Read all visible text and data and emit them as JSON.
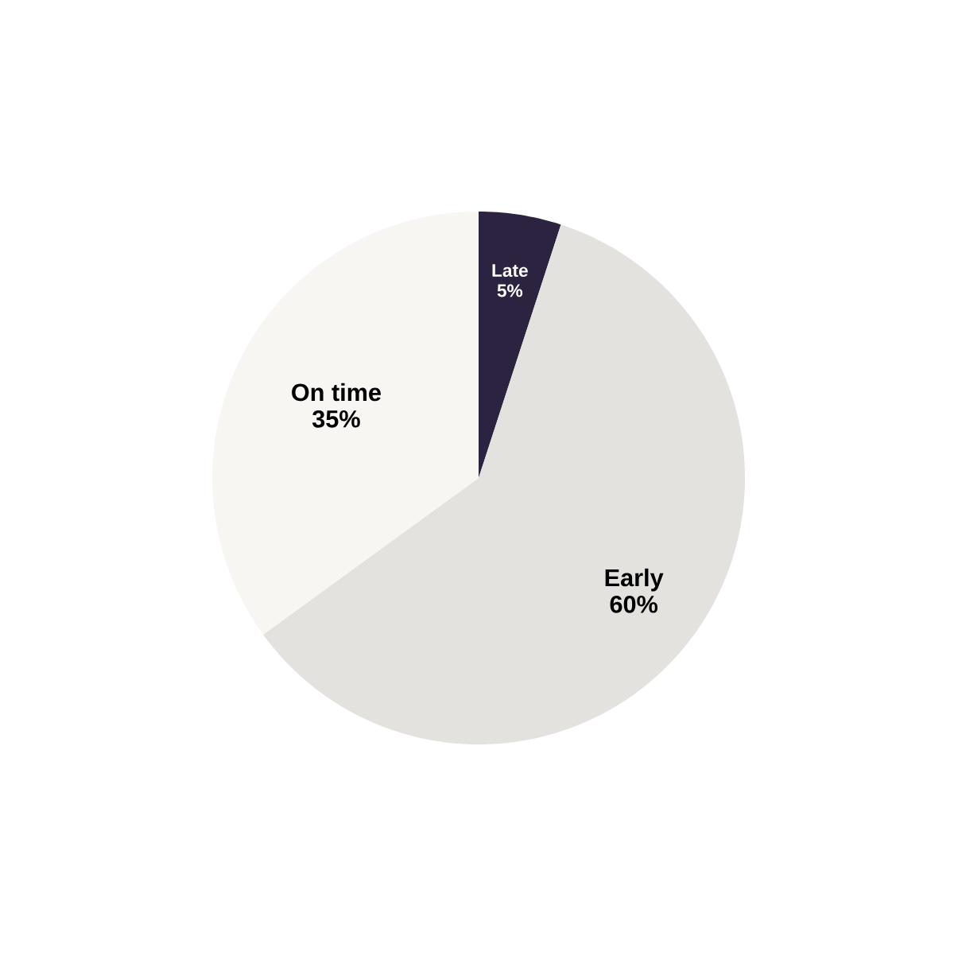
{
  "chart_data": {
    "type": "pie",
    "categories": [
      "Late",
      "Early",
      "On time"
    ],
    "values": [
      5,
      60,
      35
    ],
    "colors": [
      "#2b2340",
      "#e3e2de",
      "#f7f6f3"
    ],
    "value_labels": [
      "5%",
      "60%",
      "35%"
    ]
  }
}
